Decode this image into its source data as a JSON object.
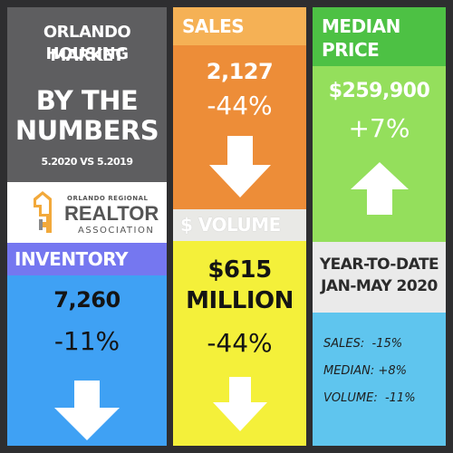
{
  "title": {
    "line1": "ORLANDO HOUSING",
    "line2": "MARKET",
    "big1": "BY THE",
    "big2": "NUMBERS",
    "period": "5.2020 VS 5.2019"
  },
  "logo": {
    "line1": "ORLANDO REGIONAL",
    "line2": "REALTOR",
    "line3": "ASSOCIATION",
    "icon": "key-house-icon"
  },
  "sales": {
    "label": "SALES",
    "value": "2,127",
    "change": "-44%",
    "arrow": "down-arrow-icon"
  },
  "median": {
    "label_line1": "MEDIAN",
    "label_line2": "PRICE",
    "value": "$259,900",
    "change": "+7%",
    "arrow": "up-arrow-icon"
  },
  "volume": {
    "label": "$ VOLUME",
    "value_line1": "$615",
    "value_line2": "MILLION",
    "change": "-44%",
    "arrow": "down-arrow-icon"
  },
  "inventory": {
    "label": "INVENTORY",
    "value": "7,260",
    "change": "-11%",
    "arrow": "down-arrow-icon"
  },
  "ytd": {
    "line1": "YEAR-TO-DATE",
    "line2": "JAN-MAY 2020",
    "items": [
      {
        "label": "SALES:",
        "value": "-15%"
      },
      {
        "label": "MEDIAN:",
        "value": "+8%"
      },
      {
        "label": "VOLUME:",
        "value": "-11%"
      }
    ]
  },
  "colors": {
    "background": "#2e2e30",
    "sales": "#ed8d38",
    "median": "#94df5c",
    "volume": "#f4f03a",
    "inventory": "#3fa1f4",
    "ytd": "#5fc5ee"
  }
}
